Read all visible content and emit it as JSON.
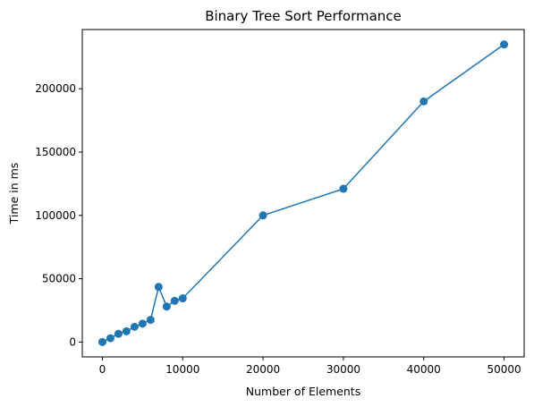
{
  "chart_data": {
    "type": "line",
    "title": "Binary Tree Sort Performance",
    "xlabel": "Number of Elements",
    "ylabel": "Time in ms",
    "xlim": [
      -2500,
      52500
    ],
    "ylim": [
      -11750,
      246750
    ],
    "x_ticks": [
      0,
      10000,
      20000,
      30000,
      40000,
      50000
    ],
    "y_ticks": [
      0,
      50000,
      100000,
      150000,
      200000
    ],
    "grid": false,
    "marker": "circle",
    "color": "#1f77b4",
    "series": [
      {
        "x": [
          0,
          1000,
          2000,
          3000,
          4000,
          5000,
          6000,
          7000,
          8000,
          9000,
          10000,
          20000,
          30000,
          40000,
          50000
        ],
        "y": [
          0,
          3000,
          6500,
          8500,
          12000,
          14500,
          17500,
          43500,
          28000,
          32500,
          34500,
          100000,
          121000,
          190000,
          235000
        ]
      }
    ]
  }
}
